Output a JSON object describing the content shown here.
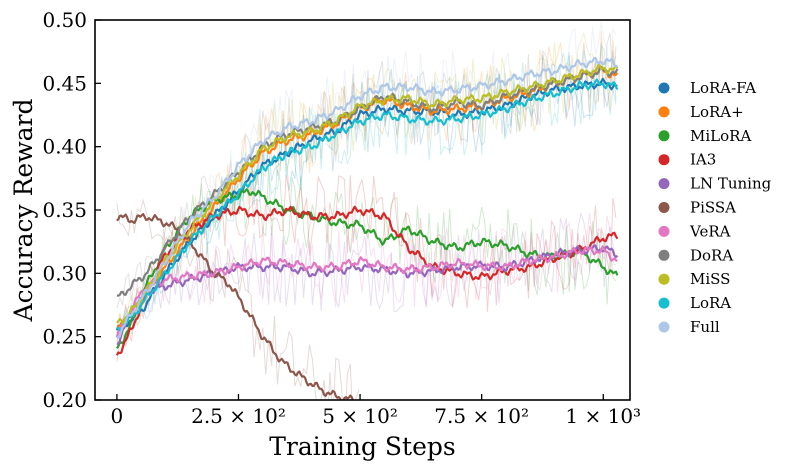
{
  "chart_data": {
    "type": "line",
    "title": "",
    "xlabel": "Training Steps",
    "ylabel": "Accuracy Reward",
    "xlim": [
      -45,
      1055
    ],
    "ylim": [
      0.2,
      0.5
    ],
    "xticks": [
      {
        "value": 0,
        "label": "0"
      },
      {
        "value": 250,
        "label": "2.5 × 10²"
      },
      {
        "value": 500,
        "label": "5 × 10²"
      },
      {
        "value": 750,
        "label": "7.5 × 10²"
      },
      {
        "value": 1000,
        "label": "1 × 10³"
      }
    ],
    "yticks": [
      {
        "value": 0.2,
        "label": "0.20"
      },
      {
        "value": 0.25,
        "label": "0.25"
      },
      {
        "value": 0.3,
        "label": "0.30"
      },
      {
        "value": 0.35,
        "label": "0.35"
      },
      {
        "value": 0.4,
        "label": "0.40"
      },
      {
        "value": 0.45,
        "label": "0.45"
      },
      {
        "value": 0.5,
        "label": "0.50"
      }
    ],
    "legend_position": "right",
    "series": [
      {
        "name": "LoRA-FA",
        "color": "#1f77b4",
        "x": [
          0,
          50,
          100,
          150,
          200,
          250,
          300,
          350,
          400,
          450,
          500,
          550,
          600,
          650,
          700,
          750,
          800,
          850,
          900,
          950,
          1000,
          1030
        ],
        "y": [
          0.255,
          0.27,
          0.3,
          0.325,
          0.345,
          0.365,
          0.385,
          0.395,
          0.405,
          0.412,
          0.425,
          0.43,
          0.428,
          0.428,
          0.425,
          0.428,
          0.432,
          0.44,
          0.445,
          0.448,
          0.45,
          0.448
        ]
      },
      {
        "name": "LoRA+",
        "color": "#ff7f0e",
        "x": [
          0,
          50,
          100,
          150,
          200,
          250,
          300,
          350,
          400,
          450,
          500,
          550,
          600,
          650,
          700,
          750,
          800,
          850,
          900,
          950,
          1000,
          1030
        ],
        "y": [
          0.255,
          0.278,
          0.305,
          0.33,
          0.352,
          0.375,
          0.395,
          0.405,
          0.41,
          0.418,
          0.43,
          0.437,
          0.432,
          0.428,
          0.43,
          0.432,
          0.438,
          0.443,
          0.45,
          0.455,
          0.46,
          0.455
        ]
      },
      {
        "name": "MiLoRA",
        "color": "#2ca02c",
        "x": [
          0,
          30,
          60,
          100,
          150,
          200,
          250,
          280,
          300,
          350,
          400,
          450,
          500,
          550,
          600,
          650,
          700,
          750,
          800,
          850,
          900,
          950,
          1000,
          1030
        ],
        "y": [
          0.24,
          0.26,
          0.29,
          0.32,
          0.345,
          0.358,
          0.362,
          0.365,
          0.36,
          0.35,
          0.345,
          0.34,
          0.338,
          0.325,
          0.335,
          0.325,
          0.32,
          0.325,
          0.322,
          0.315,
          0.313,
          0.318,
          0.305,
          0.297
        ]
      },
      {
        "name": "IA3",
        "color": "#d62728",
        "x": [
          0,
          30,
          60,
          100,
          150,
          200,
          250,
          300,
          350,
          400,
          450,
          500,
          550,
          600,
          650,
          700,
          750,
          800,
          850,
          900,
          950,
          1000,
          1030
        ],
        "y": [
          0.235,
          0.255,
          0.285,
          0.315,
          0.335,
          0.345,
          0.35,
          0.345,
          0.35,
          0.345,
          0.345,
          0.35,
          0.345,
          0.32,
          0.305,
          0.3,
          0.297,
          0.302,
          0.305,
          0.312,
          0.318,
          0.328,
          0.33
        ]
      },
      {
        "name": "LN Tuning",
        "color": "#9467bd",
        "x": [
          0,
          30,
          60,
          100,
          150,
          200,
          250,
          300,
          350,
          400,
          450,
          500,
          550,
          600,
          650,
          700,
          750,
          800,
          850,
          900,
          950,
          1000,
          1030
        ],
        "y": [
          0.245,
          0.268,
          0.285,
          0.29,
          0.295,
          0.3,
          0.305,
          0.305,
          0.305,
          0.3,
          0.302,
          0.305,
          0.303,
          0.3,
          0.302,
          0.305,
          0.306,
          0.305,
          0.31,
          0.315,
          0.318,
          0.32,
          0.315
        ]
      },
      {
        "name": "PiSSA",
        "color": "#8c564b",
        "x": [
          0,
          30,
          60,
          100,
          130,
          160,
          200,
          230,
          260,
          300,
          340,
          380,
          420,
          450,
          470,
          500
        ],
        "y": [
          0.345,
          0.342,
          0.345,
          0.34,
          0.333,
          0.32,
          0.3,
          0.292,
          0.275,
          0.25,
          0.23,
          0.218,
          0.208,
          0.203,
          0.201,
          0.199
        ]
      },
      {
        "name": "VeRA",
        "color": "#e377c2",
        "x": [
          0,
          30,
          60,
          100,
          150,
          200,
          250,
          300,
          350,
          400,
          450,
          500,
          550,
          600,
          650,
          700,
          750,
          800,
          850,
          900,
          950,
          1000,
          1030
        ],
        "y": [
          0.25,
          0.272,
          0.29,
          0.295,
          0.298,
          0.3,
          0.305,
          0.31,
          0.308,
          0.305,
          0.305,
          0.31,
          0.305,
          0.303,
          0.305,
          0.308,
          0.306,
          0.305,
          0.31,
          0.313,
          0.318,
          0.318,
          0.31
        ]
      },
      {
        "name": "DoRA",
        "color": "#7f7f7f",
        "x": [
          0,
          30,
          60,
          100,
          150,
          200,
          250,
          300,
          350,
          400,
          450,
          500,
          550,
          600,
          650,
          700,
          750,
          800,
          850,
          900,
          950,
          1000,
          1030
        ],
        "y": [
          0.28,
          0.29,
          0.3,
          0.32,
          0.345,
          0.362,
          0.38,
          0.4,
          0.41,
          0.415,
          0.42,
          0.43,
          0.44,
          0.435,
          0.43,
          0.435,
          0.432,
          0.44,
          0.445,
          0.45,
          0.455,
          0.46,
          0.458
        ]
      },
      {
        "name": "MiSS",
        "color": "#bcbd22",
        "x": [
          0,
          30,
          60,
          100,
          150,
          200,
          250,
          300,
          350,
          400,
          450,
          500,
          550,
          600,
          650,
          700,
          750,
          800,
          850,
          900,
          950,
          1000,
          1030
        ],
        "y": [
          0.26,
          0.27,
          0.285,
          0.31,
          0.335,
          0.357,
          0.378,
          0.398,
          0.408,
          0.412,
          0.42,
          0.432,
          0.437,
          0.438,
          0.433,
          0.437,
          0.438,
          0.443,
          0.447,
          0.452,
          0.457,
          0.462,
          0.46
        ]
      },
      {
        "name": "LoRA",
        "color": "#17becf",
        "x": [
          0,
          30,
          60,
          100,
          150,
          200,
          250,
          300,
          350,
          400,
          450,
          500,
          550,
          600,
          650,
          700,
          750,
          800,
          850,
          900,
          950,
          1000,
          1030
        ],
        "y": [
          0.255,
          0.265,
          0.28,
          0.3,
          0.325,
          0.345,
          0.363,
          0.383,
          0.395,
          0.4,
          0.41,
          0.42,
          0.425,
          0.422,
          0.42,
          0.422,
          0.425,
          0.43,
          0.437,
          0.442,
          0.448,
          0.45,
          0.447
        ]
      },
      {
        "name": "Full",
        "color": "#aec7e8",
        "x": [
          0,
          30,
          60,
          100,
          150,
          200,
          250,
          300,
          350,
          400,
          450,
          500,
          550,
          600,
          650,
          700,
          750,
          800,
          850,
          900,
          950,
          1000,
          1030
        ],
        "y": [
          0.25,
          0.268,
          0.285,
          0.31,
          0.34,
          0.36,
          0.385,
          0.405,
          0.415,
          0.42,
          0.428,
          0.44,
          0.447,
          0.447,
          0.443,
          0.445,
          0.448,
          0.452,
          0.457,
          0.46,
          0.465,
          0.468,
          0.465
        ]
      }
    ]
  }
}
